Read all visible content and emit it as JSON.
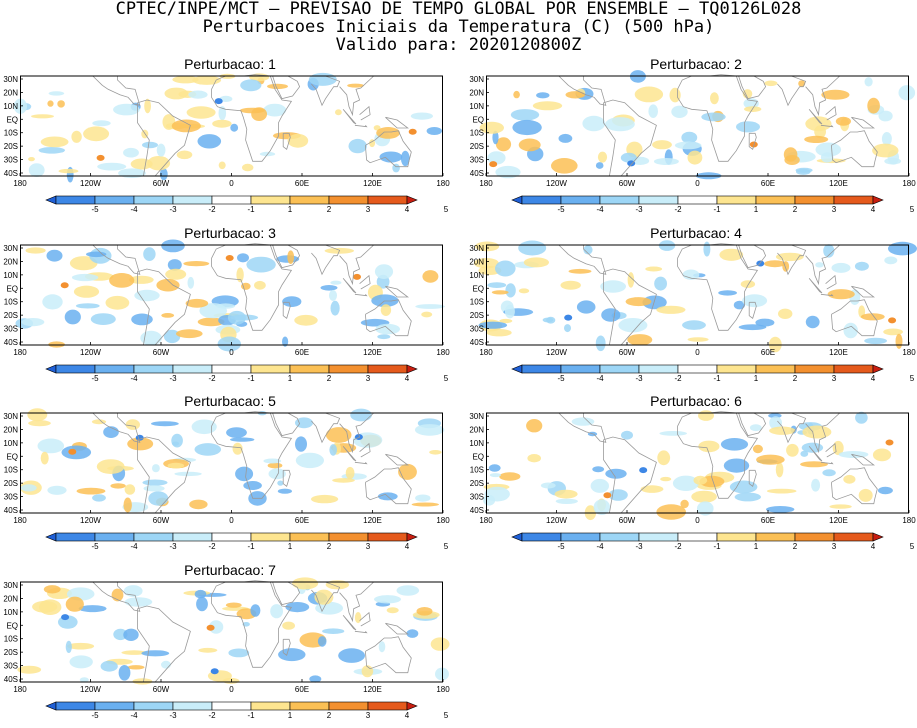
{
  "header": {
    "line1": "CPTEC/INPE/MCT – PREVISAO DE TEMPO GLOBAL POR ENSEMBLE – TQ0126L028",
    "line2": "Perturbacoes Iniciais da Temperatura (C) (500 hPa)",
    "line3": "Valido para: 2020120800Z"
  },
  "axes": {
    "y_ticks": [
      "30N",
      "20N",
      "10N",
      "EQ",
      "10S",
      "20S",
      "30S",
      "40S"
    ],
    "x_ticks": [
      "180",
      "120W",
      "60W",
      "0",
      "60E",
      "120E",
      "180"
    ]
  },
  "colorbar": {
    "labels": [
      "-5",
      "-4",
      "-3",
      "-2",
      "-1",
      "1",
      "2",
      "3",
      "4",
      "5"
    ],
    "colors": [
      "#1f5fd6",
      "#3d87e6",
      "#6ab0f0",
      "#9dd6f6",
      "#c9edf9",
      "#ffffff",
      "#fde590",
      "#fbc055",
      "#f3902f",
      "#e55a1c",
      "#c81e10"
    ]
  },
  "panels": [
    {
      "title": "Perturbacao: 1"
    },
    {
      "title": "Perturbacao: 2"
    },
    {
      "title": "Perturbacao: 3"
    },
    {
      "title": "Perturbacao: 4"
    },
    {
      "title": "Perturbacao: 5"
    },
    {
      "title": "Perturbacao: 6"
    },
    {
      "title": "Perturbacao: 7"
    }
  ]
}
